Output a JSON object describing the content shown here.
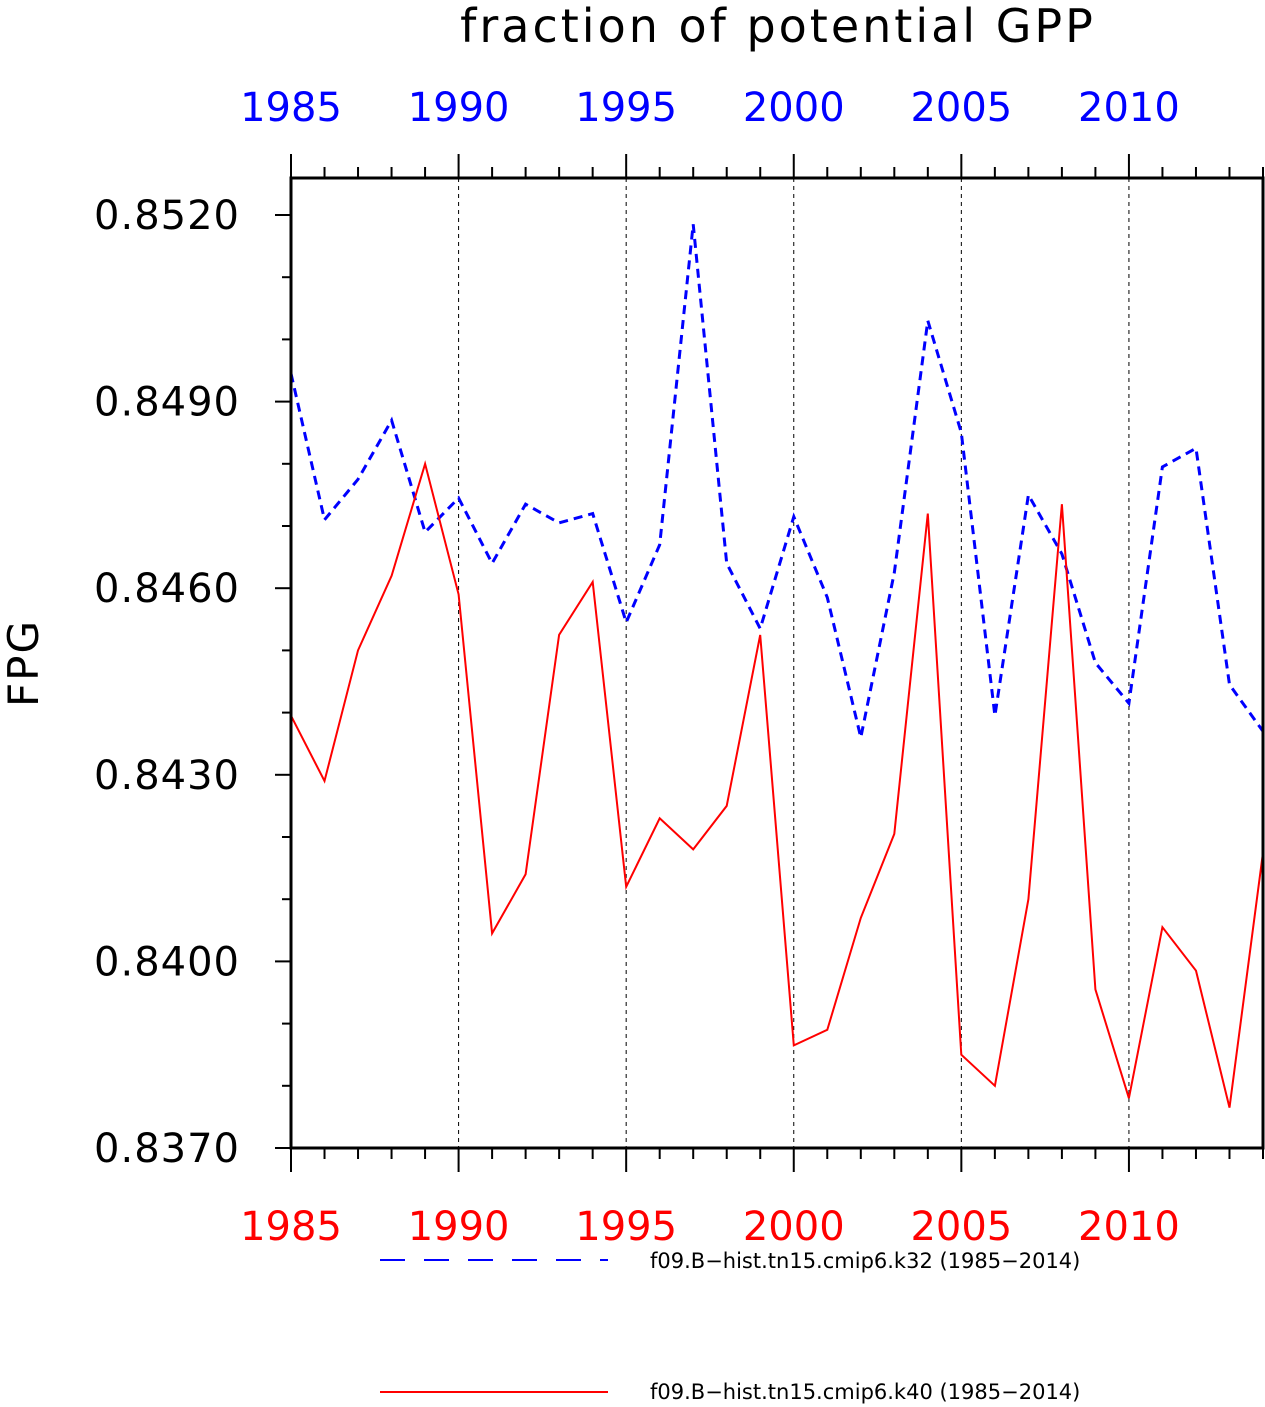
{
  "chart_data": {
    "type": "line",
    "title": "fraction of potential GPP",
    "ylabel": "FPG",
    "xlabel": "",
    "xlim": [
      1985,
      2014
    ],
    "ylim": [
      0.837,
      0.8525
    ],
    "yticks": [
      "0.8520",
      "0.8490",
      "0.8460",
      "0.8430",
      "0.8400",
      "0.8370"
    ],
    "ytick_values": [
      0.852,
      0.849,
      0.846,
      0.843,
      0.84,
      0.837
    ],
    "xticks": [
      "1985",
      "1990",
      "1995",
      "2000",
      "2005",
      "2010"
    ],
    "xtick_values": [
      1985,
      1990,
      1995,
      2000,
      2005,
      2010
    ],
    "grid": "vertical dashed at labeled years",
    "legend_position": "bottom",
    "x": [
      1985,
      1986,
      1987,
      1988,
      1989,
      1990,
      1991,
      1992,
      1993,
      1994,
      1995,
      1996,
      1997,
      1998,
      1999,
      2000,
      2001,
      2002,
      2003,
      2004,
      2005,
      2006,
      2007,
      2008,
      2009,
      2010,
      2011,
      2012,
      2013,
      2014
    ],
    "series": [
      {
        "name": "f09.B−hist.tn15.cmip6.k32 (1985−2014)",
        "color": "#0000ff",
        "dash": "dashed",
        "values": [
          0.84945,
          0.8471,
          0.84775,
          0.8487,
          0.8469,
          0.84745,
          0.8464,
          0.84735,
          0.84705,
          0.8472,
          0.84545,
          0.8467,
          0.85185,
          0.8464,
          0.84535,
          0.84715,
          0.84585,
          0.8436,
          0.84625,
          0.8503,
          0.8485,
          0.84395,
          0.8475,
          0.84655,
          0.8448,
          0.84415,
          0.84795,
          0.84825,
          0.84445,
          0.8437
        ]
      },
      {
        "name": "f09.B−hist.tn15.cmip6.k40 (1985−2014)",
        "color": "#ff0000",
        "dash": "solid",
        "values": [
          0.84395,
          0.8429,
          0.845,
          0.8462,
          0.848,
          0.8459,
          0.84045,
          0.8414,
          0.84525,
          0.8461,
          0.8412,
          0.8423,
          0.8418,
          0.8425,
          0.84525,
          0.83865,
          0.8389,
          0.8407,
          0.84205,
          0.8472,
          0.8385,
          0.838,
          0.841,
          0.84735,
          0.83955,
          0.8378,
          0.84055,
          0.83985,
          0.83765,
          0.84175
        ]
      }
    ]
  }
}
